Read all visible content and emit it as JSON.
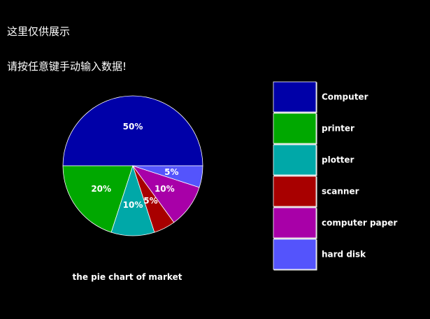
{
  "messages": {
    "line1": "这里仅供展示",
    "line2": "请按任意键手动输入数据!"
  },
  "chart_data": {
    "type": "pie",
    "title": "the pie chart of market",
    "categories": [
      "Computer",
      "printer",
      "plotter",
      "scanner",
      "computer paper",
      "hard disk"
    ],
    "values": [
      50,
      20,
      10,
      5,
      10,
      5
    ],
    "labels": [
      "50%",
      "20%",
      "10%",
      "5%",
      "10%",
      "5%"
    ],
    "colors": [
      "#0000a8",
      "#00a800",
      "#00a8a8",
      "#a80000",
      "#a800a8",
      "#5454fc"
    ],
    "legend": "right",
    "slice_outline": "#ffffff"
  }
}
